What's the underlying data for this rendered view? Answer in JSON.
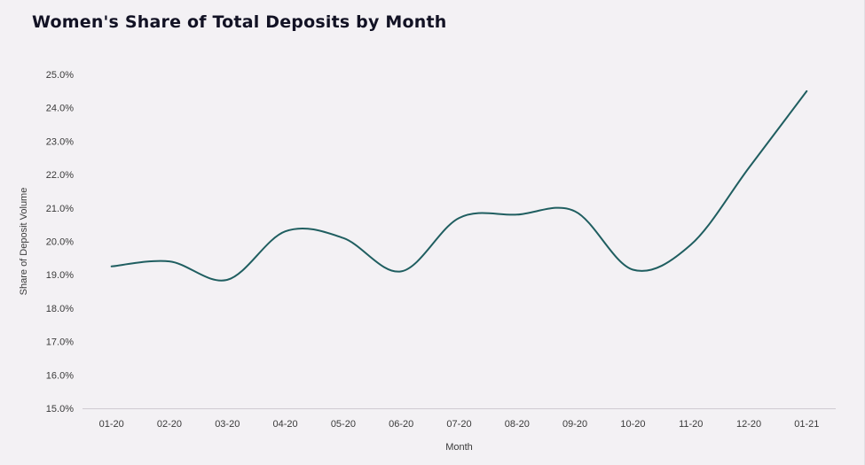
{
  "chart_data": {
    "type": "line",
    "title": "Women's Share of Total Deposits by Month",
    "xlabel": "Month",
    "ylabel": "Share of Deposit Volume",
    "categories": [
      "01-20",
      "02-20",
      "03-20",
      "04-20",
      "05-20",
      "06-20",
      "07-20",
      "08-20",
      "09-20",
      "10-20",
      "11-20",
      "12-20",
      "01-21"
    ],
    "series": [
      {
        "values": [
          19.25,
          19.4,
          18.85,
          20.3,
          20.1,
          19.1,
          20.7,
          20.8,
          20.9,
          19.15,
          19.9,
          22.2,
          24.5
        ],
        "color": "#1f5e60"
      }
    ],
    "y_ticks": [
      "15.0%",
      "16.0%",
      "17.0%",
      "18.0%",
      "19.0%",
      "20.0%",
      "21.0%",
      "22.0%",
      "23.0%",
      "24.0%",
      "25.0%"
    ],
    "ylim": [
      15,
      25
    ],
    "grid": false,
    "legend": "none",
    "colors": {
      "background": "#f3f1f4",
      "axis_line": "#cfcbd2",
      "title": "#121224"
    }
  }
}
